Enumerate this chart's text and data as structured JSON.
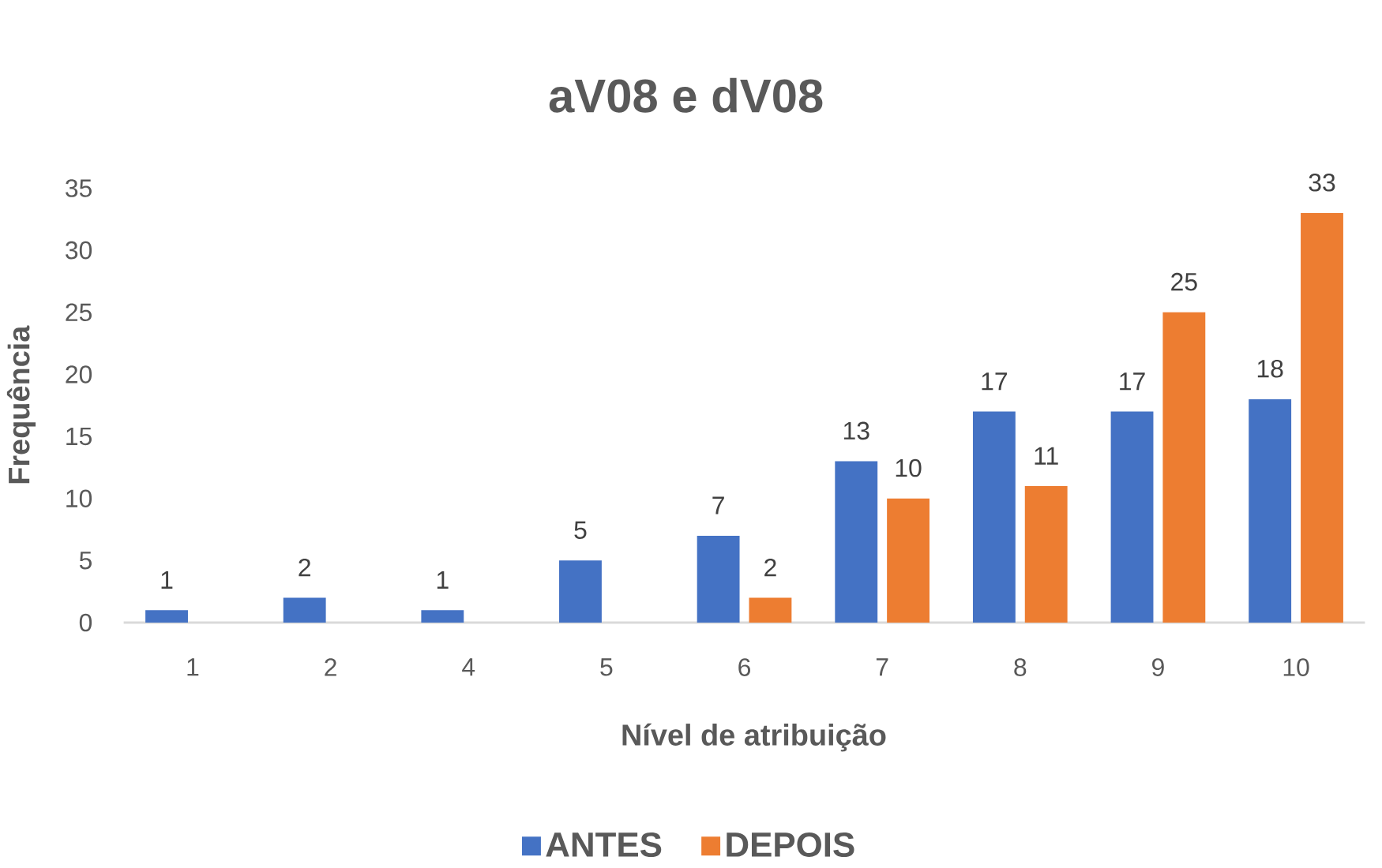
{
  "chart_data": {
    "type": "bar",
    "title": "aV08 e dV08",
    "xlabel": "Nível de atribuição",
    "ylabel": "Frequência",
    "categories": [
      "1",
      "2",
      "4",
      "5",
      "6",
      "7",
      "8",
      "9",
      "10"
    ],
    "series": [
      {
        "name": "ANTES",
        "color": "#4472c4",
        "values": [
          1,
          2,
          1,
          5,
          7,
          13,
          17,
          17,
          18
        ]
      },
      {
        "name": "DEPOIS",
        "color": "#ed7d31",
        "values": [
          null,
          null,
          null,
          null,
          2,
          10,
          11,
          25,
          33
        ]
      }
    ],
    "ylim": [
      0,
      35
    ],
    "yticks": [
      0,
      5,
      10,
      15,
      20,
      25,
      30,
      35
    ],
    "data_labels": true,
    "legend": "bottom"
  }
}
